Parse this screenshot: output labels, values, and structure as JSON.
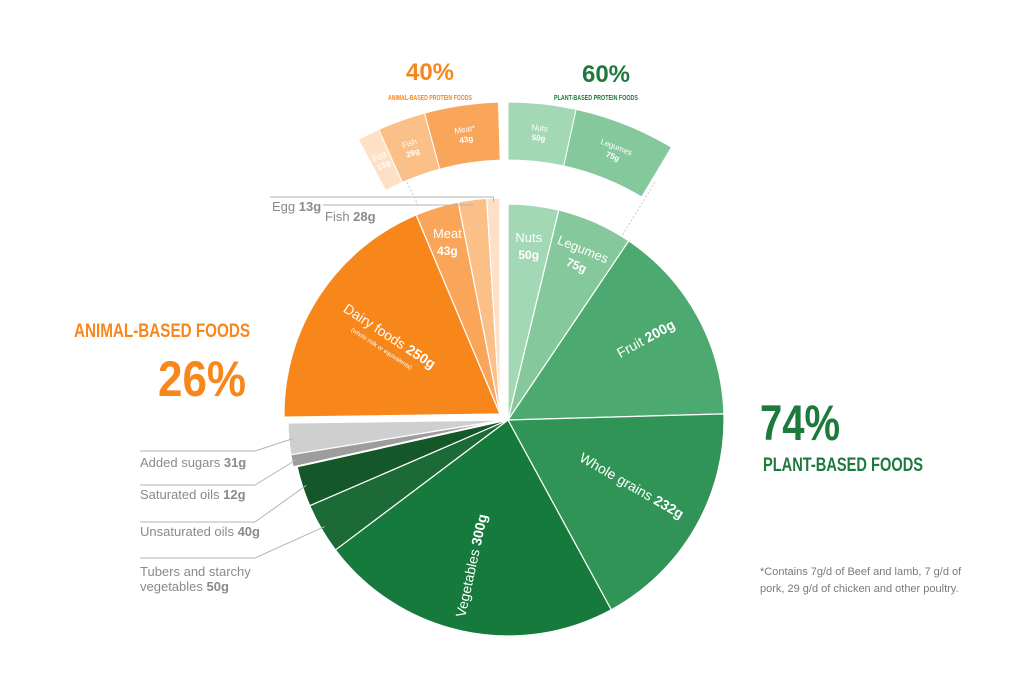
{
  "chart_data": {
    "type": "pie",
    "title": "",
    "groups": {
      "animal": {
        "pct_label": "26%",
        "title": "ANIMAL-BASED FOODS",
        "color": "#f7861b"
      },
      "plant": {
        "pct_label": "74%",
        "title": "PLANT-BASED FOODS",
        "color": "#1e7a3c"
      }
    },
    "slices": [
      {
        "key": "nuts",
        "name": "Nuts",
        "value": 50,
        "value_label": "50g",
        "color": "#a3d8b5",
        "text_color": "#ffffff"
      },
      {
        "key": "legumes",
        "name": "Legumes",
        "value": 75,
        "value_label": "75g",
        "color": "#84c89c",
        "text_color": "#ffffff"
      },
      {
        "key": "fruit",
        "name": "Fruit",
        "value": 200,
        "value_label": "200g",
        "color": "#4ca96f",
        "text_color": "#ffffff"
      },
      {
        "key": "whole_grains",
        "name": "Whole grains",
        "value": 232,
        "value_label": "232g",
        "color": "#2f9456",
        "text_color": "#ffffff"
      },
      {
        "key": "vegetables",
        "name": "Vegetables",
        "value": 300,
        "value_label": "300g",
        "color": "#177a3d",
        "text_color": "#ffffff"
      },
      {
        "key": "tubers",
        "name": "Tubers and starchy vegetables",
        "value": 50,
        "value_label": "50g",
        "color": "#1c6b36",
        "text_color": "#ffffff"
      },
      {
        "key": "unsat_oils",
        "name": "Unsaturated oils",
        "value": 40,
        "value_label": "40g",
        "color": "#14582a",
        "text_color": "#ffffff"
      },
      {
        "key": "sat_oils",
        "name": "Saturated oils",
        "value": 12,
        "value_label": "12g",
        "color": "#9d9d9d",
        "text_color": "#ffffff"
      },
      {
        "key": "sugars",
        "name": "Added sugars",
        "value": 31,
        "value_label": "31g",
        "color": "#cfcfcf",
        "text_color": "#ffffff"
      },
      {
        "key": "dairy",
        "name": "Dairy foods",
        "value": 250,
        "value_label": "250g",
        "note": "(whole milk or equivalents)",
        "color": "#f7861b",
        "text_color": "#ffffff"
      },
      {
        "key": "meat",
        "name": "Meat",
        "value": 43,
        "value_label": "43g",
        "color": "#f9a65a",
        "text_color": "#ffffff"
      },
      {
        "key": "fish",
        "name": "Fish",
        "value": 28,
        "value_label": "28g",
        "color": "#fbbf88",
        "text_color": "#ffffff"
      },
      {
        "key": "egg",
        "name": "Egg",
        "value": 13,
        "value_label": "13g",
        "color": "#fde0c6",
        "text_color": "#ffffff"
      }
    ],
    "protein_breakdown": {
      "animal": {
        "pct_label": "40%",
        "title": "ANIMAL-BASED PROTEIN FOODS",
        "items": [
          {
            "name": "Egg",
            "value": 13,
            "value_label": "13g",
            "color": "#fde0c6"
          },
          {
            "name": "Fish",
            "value": 28,
            "value_label": "28g",
            "color": "#fbbf88"
          },
          {
            "name": "Meat*",
            "value": 43,
            "value_label": "43g",
            "color": "#f9a65a"
          }
        ]
      },
      "plant": {
        "pct_label": "60%",
        "title": "PLANT-BASED PROTEIN FOODS",
        "items": [
          {
            "name": "Nuts",
            "value": 50,
            "value_label": "50g",
            "color": "#a3d8b5"
          },
          {
            "name": "Legumes",
            "value": 75,
            "value_label": "75g",
            "color": "#84c89c"
          }
        ]
      }
    },
    "footnote": "*Contains 7g/d of Beef and lamb, 7 g/d of pork, 29 g/d of chicken and other poultry."
  }
}
